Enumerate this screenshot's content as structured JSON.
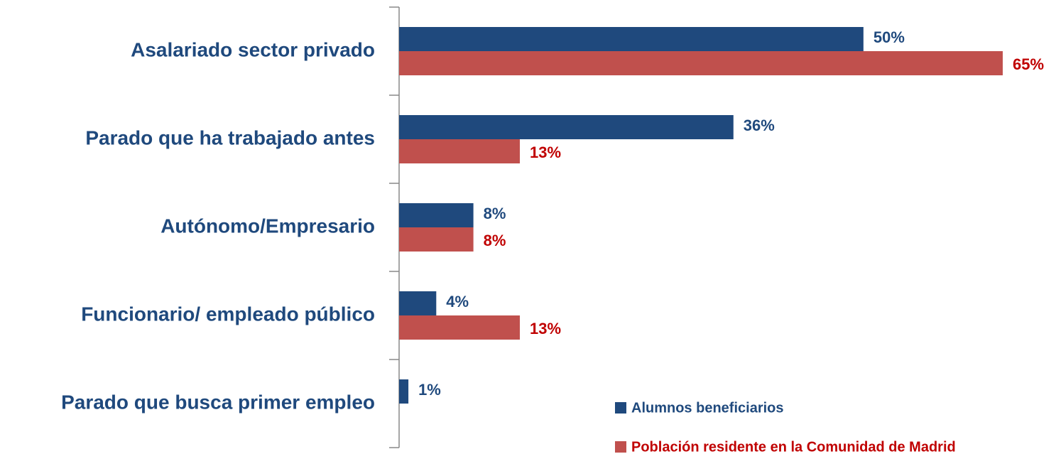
{
  "chart_data": {
    "type": "hbar",
    "categories": [
      "Asalariado sector privado",
      "Parado que ha trabajado antes",
      "Autónomo/Empresario",
      "Funcionario/ empleado público",
      "Parado que busca primer empleo"
    ],
    "series": [
      {
        "name": "Alumnos beneficiarios",
        "color": "#1f497d",
        "label_color": "#1f497d",
        "values": [
          50,
          36,
          8,
          4,
          1
        ],
        "value_labels": [
          "50%",
          "36%",
          "8%",
          "4%",
          "1%"
        ]
      },
      {
        "name": "Población residente en la Comunidad de Madrid",
        "color": "#c0504d",
        "label_color": "#c00000",
        "values": [
          65,
          13,
          8,
          13,
          null
        ],
        "value_labels": [
          "65%",
          "13%",
          "8%",
          "13%",
          null
        ]
      }
    ],
    "xlim": [
      0,
      65
    ],
    "legend": "bottom-right"
  }
}
